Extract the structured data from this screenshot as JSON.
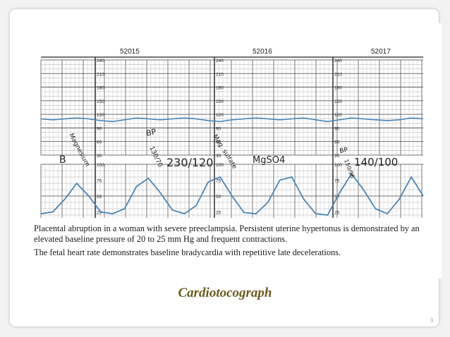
{
  "slide": {
    "title": "Cardiotocograph",
    "page_number": "9"
  },
  "ctg": {
    "page_labels": [
      "52015",
      "52016",
      "52017"
    ],
    "fhr_scale_labels": [
      "240",
      "210",
      "180",
      "150",
      "120",
      "90",
      "60",
      "30"
    ],
    "uc_scale_labels": [
      "100",
      "75",
      "50",
      "25"
    ],
    "annotations": {
      "vitals_b": "B",
      "vitals_mag": "Magnesium",
      "bp_1": "BP",
      "bp_1_value": "230/120",
      "bp_1_small": "130/70",
      "mag_sulfate": "Mag. sulfate",
      "mag_sulfate_dose": "MgSO4",
      "bp_2": "BP",
      "bp_2_small": "150/96",
      "bp_2_value": "140/100"
    },
    "caption_lines": [
      "Placental abruption in a woman with severe preeclampsia. Persistent uterine hypertonus is demonstrated by an",
      "elevated baseline pressure of 20 to 25 mm Hg and frequent contractions.",
      "The fetal heart rate demonstrates baseline bradycardia with repetitive late decelerations."
    ],
    "trace_color": "#4a86b8"
  },
  "chart_data": {
    "type": "line",
    "title": "",
    "series": [
      {
        "name": "",
        "unit": "bpm",
        "values": [
          110,
          108,
          110,
          112,
          110,
          106,
          104,
          108,
          112,
          110,
          108,
          110,
          112,
          110,
          106,
          104,
          108,
          110,
          112,
          110,
          108,
          110,
          112,
          108,
          104,
          108,
          112,
          110,
          108,
          106,
          108,
          112,
          110
        ]
      },
      {
        "name": "",
        "unit": "mm Hg",
        "values": [
          22,
          25,
          45,
          70,
          50,
          25,
          22,
          30,
          65,
          78,
          55,
          28,
          22,
          35,
          72,
          80,
          50,
          24,
          22,
          40,
          75,
          80,
          45,
          22,
          20,
          55,
          85,
          60,
          30,
          22,
          45,
          80,
          50
        ]
      }
    ],
    "fhr_ylim": [
      30,
      240
    ],
    "uc_ylim": [
      0,
      100
    ],
    "xlabel": "",
    "ylabel": ""
  }
}
